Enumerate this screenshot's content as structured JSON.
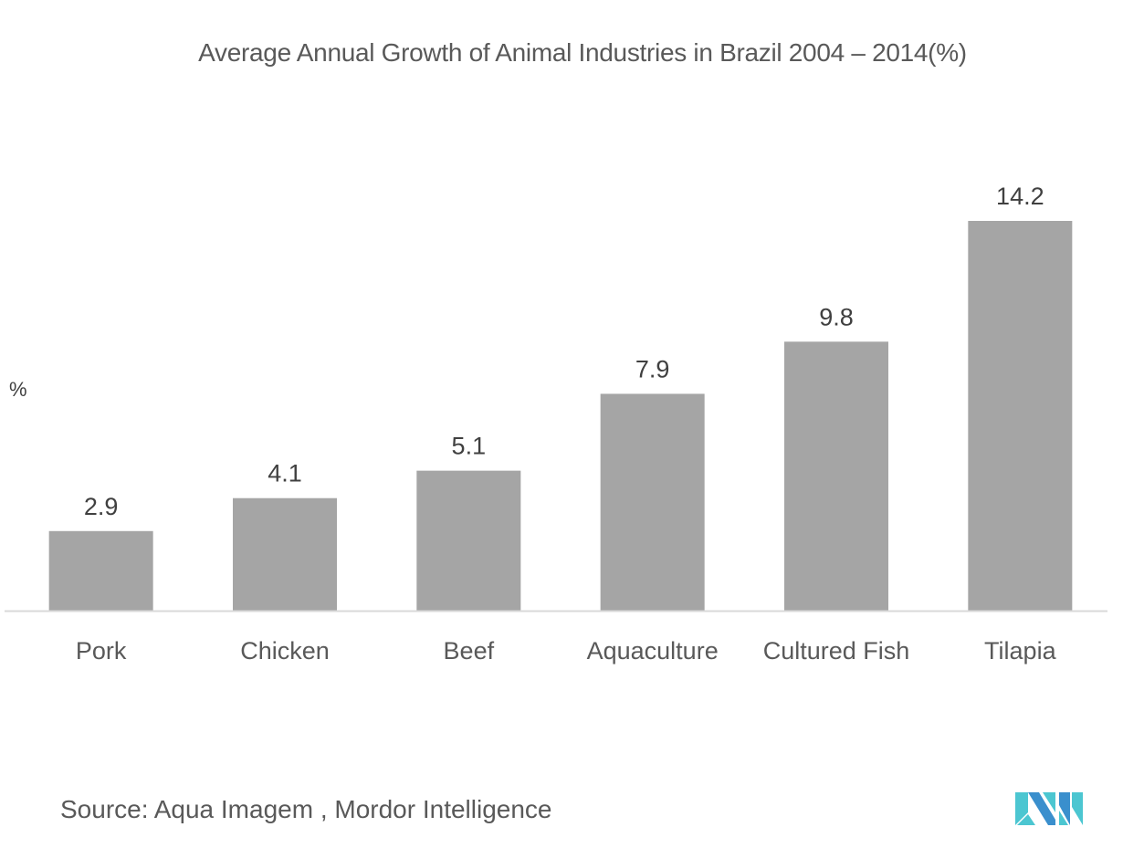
{
  "chart_data": {
    "type": "bar",
    "title": "Average Annual Growth of Animal Industries in Brazil 2004 – 2014(%)",
    "xlabel": "",
    "ylabel": "%",
    "categories": [
      "Pork",
      "Chicken",
      "Beef",
      "Aquaculture",
      "Cultured Fish",
      "Tilapia"
    ],
    "values": [
      2.9,
      4.1,
      5.1,
      7.9,
      9.8,
      14.2
    ],
    "value_labels": [
      "2.9",
      "4.1",
      "5.1",
      "7.9",
      "9.8",
      "14.2"
    ],
    "ylim": [
      0,
      14.2
    ],
    "grid": false,
    "legend": "none",
    "bar_color": "#a5a5a5",
    "axis_color": "#d9d9d9"
  },
  "source": "Source: Aqua Imagem , Mordor Intelligence",
  "logo": {
    "name": "mordor-intelligence-logo",
    "colors": [
      "#3a8fcd",
      "#4cc6d1"
    ]
  }
}
